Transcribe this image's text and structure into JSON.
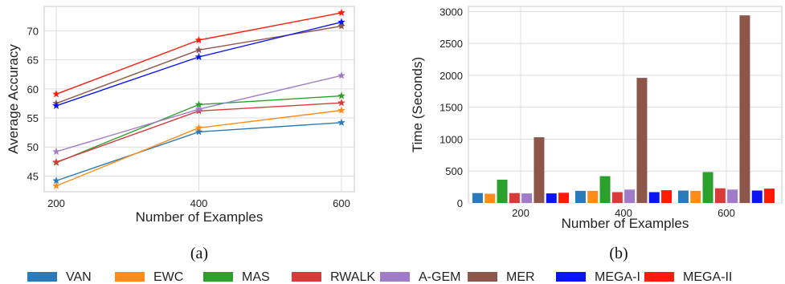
{
  "methods": [
    {
      "name": "VAN",
      "color": "#2b7bba"
    },
    {
      "name": "EWC",
      "color": "#ff8c1a"
    },
    {
      "name": "MAS",
      "color": "#2ca02c"
    },
    {
      "name": "RWALK",
      "color": "#d93a3a"
    },
    {
      "name": "A-GEM",
      "color": "#a07cc8"
    },
    {
      "name": "MER",
      "color": "#8c564b"
    },
    {
      "name": "MEGA-I",
      "color": "#0a14f5"
    },
    {
      "name": "MEGA-II",
      "color": "#ff1a0a"
    }
  ],
  "chart_data": [
    {
      "type": "line",
      "caption": "(a)",
      "xlabel": "Number of Examples",
      "ylabel": "Average Accuracy",
      "x": [
        200,
        400,
        600
      ],
      "xticks": [
        "200",
        "400",
        "600"
      ],
      "yticks": [
        "45",
        "50",
        "55",
        "60",
        "65",
        "70"
      ],
      "ylim": [
        42.3,
        74.2
      ],
      "grid": true,
      "marker": "star",
      "series": [
        {
          "name": "VAN",
          "values": [
            44.2,
            52.6,
            54.2
          ]
        },
        {
          "name": "EWC",
          "values": [
            43.3,
            53.3,
            56.3
          ]
        },
        {
          "name": "MAS",
          "values": [
            47.3,
            57.3,
            58.8
          ]
        },
        {
          "name": "RWALK",
          "values": [
            47.4,
            56.2,
            57.6
          ]
        },
        {
          "name": "A-GEM",
          "values": [
            49.2,
            56.5,
            62.3
          ]
        },
        {
          "name": "MER",
          "values": [
            57.5,
            66.7,
            70.8
          ]
        },
        {
          "name": "MEGA-I",
          "values": [
            57.1,
            65.5,
            71.5
          ]
        },
        {
          "name": "MEGA-II",
          "values": [
            59.1,
            68.4,
            73.1
          ]
        }
      ]
    },
    {
      "type": "bar",
      "caption": "(b)",
      "xlabel": "Number of Examples",
      "ylabel": "Time (Seconds)",
      "categories": [
        "200",
        "400",
        "600"
      ],
      "yticks": [
        "0",
        "500",
        "1000",
        "1500",
        "2000",
        "2500",
        "3000"
      ],
      "ylim": [
        0,
        3080
      ],
      "grid": true,
      "series": [
        {
          "name": "VAN",
          "values": [
            155,
            190,
            195
          ]
        },
        {
          "name": "EWC",
          "values": [
            145,
            190,
            190
          ]
        },
        {
          "name": "MAS",
          "values": [
            365,
            420,
            485
          ]
        },
        {
          "name": "RWALK",
          "values": [
            155,
            170,
            230
          ]
        },
        {
          "name": "A-GEM",
          "values": [
            150,
            210,
            210
          ]
        },
        {
          "name": "MER",
          "values": [
            1030,
            1960,
            2940
          ]
        },
        {
          "name": "MEGA-I",
          "values": [
            150,
            170,
            195
          ]
        },
        {
          "name": "MEGA-II",
          "values": [
            160,
            200,
            225
          ]
        }
      ]
    }
  ]
}
